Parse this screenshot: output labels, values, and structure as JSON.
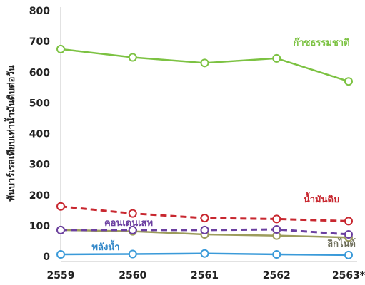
{
  "chart_data": {
    "type": "line",
    "ylabel": "พันบาร์เรลเทียบเท่าน้ำมันดิบต่อวัน",
    "x": [
      "2559",
      "2560",
      "2561",
      "2562",
      "2563*"
    ],
    "ylim": [
      0,
      800
    ],
    "yticks": [
      0,
      100,
      200,
      300,
      400,
      500,
      600,
      700,
      800
    ],
    "grid": false,
    "series": [
      {
        "name": "ก๊าซธรรมชาติ",
        "values": [
          675,
          648,
          630,
          645,
          570
        ],
        "color": "#7cc242",
        "style": "solid"
      },
      {
        "name": "น้ำมันดิบ",
        "values": [
          163,
          140,
          125,
          122,
          115
        ],
        "color": "#c8272f",
        "style": "dashed"
      },
      {
        "name": "คอนเดนเสท",
        "values": [
          86,
          86,
          86,
          88,
          72
        ],
        "color": "#6b3fa0",
        "style": "dashed"
      },
      {
        "name": "ลิกไนต์",
        "values": [
          86,
          82,
          72,
          68,
          62
        ],
        "color": "#9c9c5c",
        "style": "solid"
      },
      {
        "name": "พลังน้ำ",
        "values": [
          7,
          8,
          10,
          7,
          5
        ],
        "color": "#3a9ad9",
        "style": "solid"
      }
    ]
  }
}
